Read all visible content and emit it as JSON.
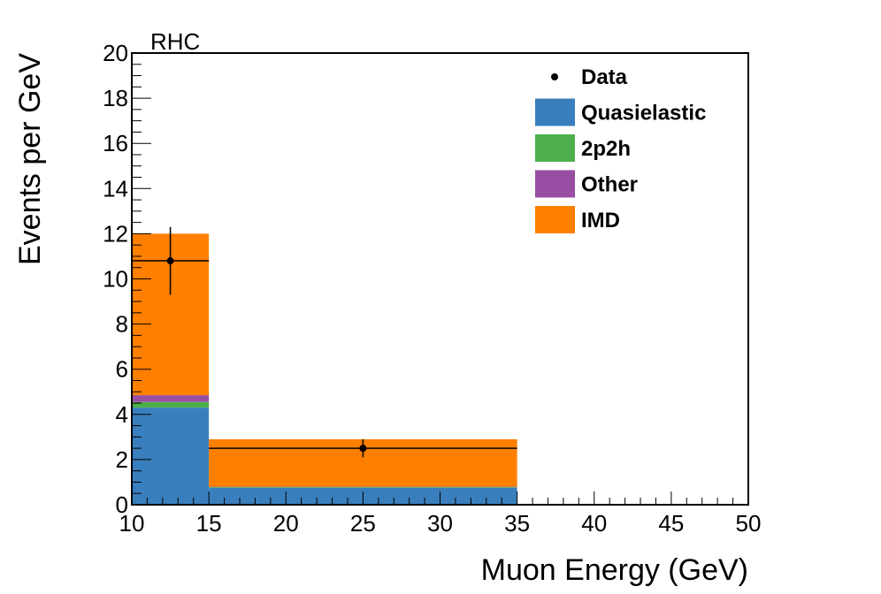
{
  "chart_data": {
    "type": "bar",
    "stacked": true,
    "run_label": "RHC",
    "xlabel": "Muon Energy (GeV)",
    "ylabel": "Events per GeV",
    "xlim": [
      10,
      50
    ],
    "ylim": [
      0,
      20
    ],
    "x_ticks": [
      10,
      15,
      20,
      25,
      30,
      35,
      40,
      45,
      50
    ],
    "y_ticks": [
      0,
      2,
      4,
      6,
      8,
      10,
      12,
      14,
      16,
      18,
      20
    ],
    "bins": [
      [
        10,
        15
      ],
      [
        15,
        35
      ]
    ],
    "series": [
      {
        "name": "Quasielastic",
        "color": "#3a7fbd",
        "values": [
          4.3,
          0.75
        ]
      },
      {
        "name": "2p2h",
        "color": "#4daf4a",
        "values": [
          0.25,
          0.03
        ]
      },
      {
        "name": "Other",
        "color": "#984ea3",
        "values": [
          0.3,
          0.02
        ]
      },
      {
        "name": "IMD",
        "color": "#ff7f00",
        "values": [
          7.15,
          2.1
        ]
      }
    ],
    "data": {
      "name": "Data",
      "points": [
        {
          "x": 12.5,
          "y": 10.8,
          "xerr": 2.5,
          "yerr": 1.5
        },
        {
          "x": 25,
          "y": 2.5,
          "xerr": 10,
          "yerr": 0.4
        }
      ]
    },
    "legend": {
      "position": "top-right",
      "entries": [
        "Data",
        "Quasielastic",
        "2p2h",
        "Other",
        "IMD"
      ]
    }
  }
}
